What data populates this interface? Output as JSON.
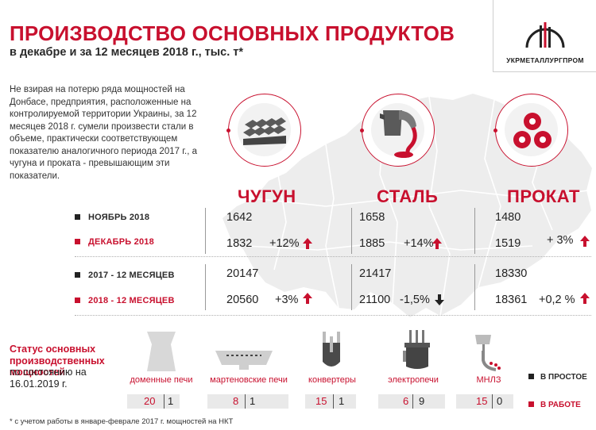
{
  "header": {
    "title": "ПРОИЗВОДСТВО ОСНОВНЫХ ПРОДУКТОВ",
    "subtitle": "в декабре и за 12 месяцев 2018 г., тыс. т*",
    "logo_text": "УКРМЕТАЛЛУРГПРОМ"
  },
  "intro": "Не взирая на потерю ряда мощностей на Донбасе, предприятия, расположенные на контролируемой территории Украины, за 12 месяцев 2018 г. сумели произвести стали в объеме, практически соответствующем показателю аналогичного периода 2017 г., а чугуна и проката - превышающим эти показатели.",
  "row_labels": {
    "nov": "НОЯБРЬ 2018",
    "dec": "ДЕКАБРЬ 2018",
    "y2017": "2017 - 12 МЕСЯЦЕВ",
    "y2018": "2018 - 12 МЕСЯЦЕВ"
  },
  "products": [
    {
      "name": "ЧУГУН",
      "icon": "pig-iron-icon",
      "nov": "1642",
      "dec": "1832",
      "dec_change": "+12%",
      "dec_dir": "up",
      "y2017": "20147",
      "y2018": "20560",
      "y_change": "+3%",
      "y_dir": "up"
    },
    {
      "name": "СТАЛЬ",
      "icon": "steel-ladle-icon",
      "nov": "1658",
      "dec": "1885",
      "dec_change": "+14%",
      "dec_dir": "up",
      "y2017": "21417",
      "y2018": "21100",
      "y_change": "-1,5%",
      "y_dir": "down"
    },
    {
      "name": "ПРОКАТ",
      "icon": "rolled-steel-icon",
      "nov": "1480",
      "dec": "1519",
      "dec_change": "+ 3%",
      "dec_dir": "up",
      "y2017": "18330",
      "y2018": "18361",
      "y_change": "+0,2 %",
      "y_dir": "up"
    }
  ],
  "status": {
    "heading": "Статус основных производственных мощностей",
    "subheading": "по состоянию на 16.01.2019 г.",
    "facilities": [
      {
        "name": "доменные печи",
        "icon": "blast-furnace-icon",
        "working": "20",
        "idle": "1"
      },
      {
        "name": "мартеновские печи",
        "icon": "open-hearth-furnace-icon",
        "working": "8",
        "idle": "1"
      },
      {
        "name": "конвертеры",
        "icon": "converter-icon",
        "working": "15",
        "idle": "1"
      },
      {
        "name": "электропечи",
        "icon": "electric-furnace-icon",
        "working": "6",
        "idle": "9"
      },
      {
        "name": "МНЛЗ",
        "icon": "continuous-caster-icon",
        "working": "15",
        "idle": "0"
      }
    ],
    "legend_idle": "В ПРОСТОЕ",
    "legend_working": "В РАБОТЕ"
  },
  "footnote": "* с учетом работы в январе-феврале 2017 г. мощностей на НКТ",
  "colors": {
    "accent": "#c8102e",
    "dark": "#222222",
    "map": "#ededed"
  }
}
